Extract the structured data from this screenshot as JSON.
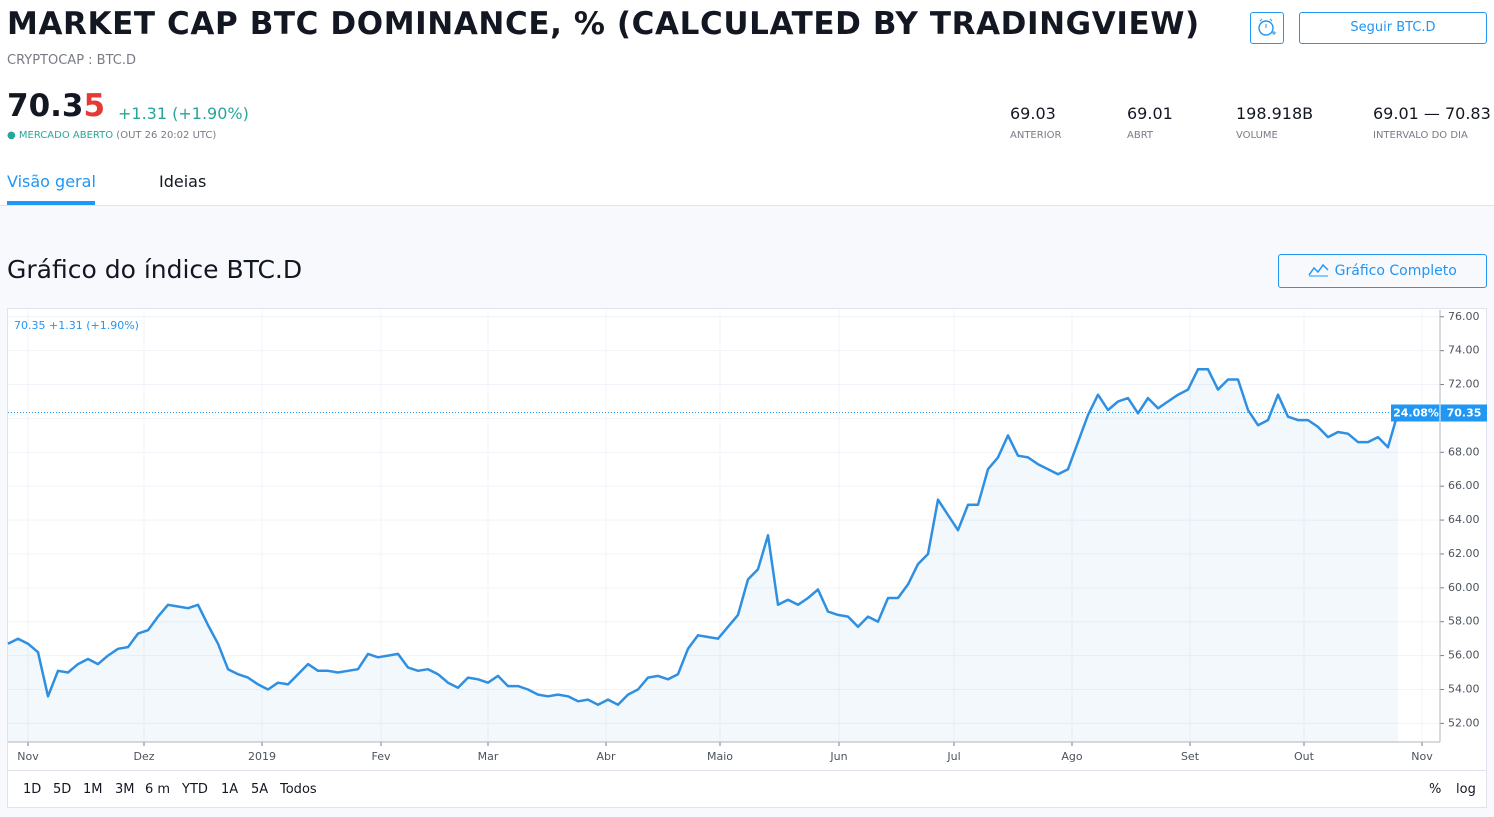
{
  "header": {
    "title": "MARKET CAP BTC DOMINANCE, % (CALCULATED BY TRADINGVIEW)",
    "symbol": "CRYPTOCAP : BTC.D",
    "price_main": "70.3",
    "price_last_digit": "5",
    "change": "+1.31 (+1.90%)",
    "market_status": "MERCADO ABERTO",
    "market_time": "(OUT 26 20:02 UTC)",
    "follow_button": "Seguir BTC.D",
    "stats": [
      {
        "value": "69.03",
        "label": "ANTERIOR"
      },
      {
        "value": "69.01",
        "label": "ABRT"
      },
      {
        "value": "198.918B",
        "label": "VOLUME"
      },
      {
        "value": "69.01 — 70.83",
        "label": "INTERVALO DO DIA"
      }
    ]
  },
  "tabs": [
    "Visão geral",
    "Ideias"
  ],
  "section": {
    "title": "Gráfico do índice BTC.D",
    "button": "Gráfico Completo"
  },
  "chart_data": {
    "type": "line",
    "legend_text": "70.35 +1.31 (+1.90%)",
    "color": "#2f8fe0",
    "values": [
      56.7,
      57.0,
      56.7,
      56.2,
      53.6,
      55.1,
      55.0,
      55.5,
      55.8,
      55.5,
      56.0,
      56.4,
      56.5,
      57.3,
      57.5,
      58.3,
      59.0,
      58.9,
      58.8,
      59.0,
      57.8,
      56.7,
      55.2,
      54.9,
      54.7,
      54.3,
      54.0,
      54.4,
      54.3,
      54.9,
      55.5,
      55.1,
      55.1,
      55.0,
      55.1,
      55.2,
      56.1,
      55.9,
      56.0,
      56.1,
      55.3,
      55.1,
      55.2,
      54.9,
      54.4,
      54.1,
      54.7,
      54.6,
      54.4,
      54.8,
      54.2,
      54.2,
      54.0,
      53.7,
      53.6,
      53.7,
      53.6,
      53.3,
      53.4,
      53.1,
      53.4,
      53.1,
      53.7,
      54.0,
      54.7,
      54.8,
      54.6,
      54.9,
      56.4,
      57.2,
      57.1,
      57.0,
      57.7,
      58.4,
      60.5,
      61.1,
      63.1,
      59.0,
      59.3,
      59.0,
      59.4,
      59.9,
      58.6,
      58.4,
      58.3,
      57.7,
      58.3,
      58.0,
      59.4,
      59.4,
      60.2,
      61.4,
      62.0,
      65.2,
      64.3,
      63.4,
      64.9,
      64.9,
      67.0,
      67.7,
      69.0,
      67.8,
      67.7,
      67.3,
      67.0,
      66.7,
      67.0,
      68.6,
      70.2,
      71.4,
      70.5,
      71.0,
      71.2,
      70.3,
      71.2,
      70.6,
      71.0,
      71.4,
      71.7,
      72.9,
      72.9,
      71.7,
      72.3,
      72.3,
      70.5,
      69.6,
      69.9,
      71.4,
      70.1,
      69.9,
      69.9,
      69.5,
      68.9,
      69.2,
      69.1,
      68.6,
      68.6,
      68.9,
      68.3,
      70.35
    ],
    "xlim": [
      0,
      143
    ],
    "xticks": [
      {
        "value": 2,
        "label": "Nov"
      },
      {
        "value": 13.6,
        "label": "Dez"
      },
      {
        "value": 25.4,
        "label": "2019"
      },
      {
        "value": 37.3,
        "label": "Fev"
      },
      {
        "value": 48,
        "label": "Mar"
      },
      {
        "value": 59.8,
        "label": "Abr"
      },
      {
        "value": 71.2,
        "label": "Maio"
      },
      {
        "value": 83.1,
        "label": "Jun"
      },
      {
        "value": 94.6,
        "label": "Jul"
      },
      {
        "value": 106.4,
        "label": "Ago"
      },
      {
        "value": 118.2,
        "label": "Set"
      },
      {
        "value": 129.6,
        "label": "Out"
      },
      {
        "value": 141.4,
        "label": "Nov"
      }
    ],
    "ylim": [
      50.9,
      76.4
    ],
    "yticks": [
      {
        "value": 52,
        "label": "52.00"
      },
      {
        "value": 54,
        "label": "54.00"
      },
      {
        "value": 56,
        "label": "56.00"
      },
      {
        "value": 58,
        "label": "58.00"
      },
      {
        "value": 60,
        "label": "60.00"
      },
      {
        "value": 62,
        "label": "62.00"
      },
      {
        "value": 64,
        "label": "64.00"
      },
      {
        "value": 66,
        "label": "66.00"
      },
      {
        "value": 68,
        "label": "68.00"
      },
      {
        "value": 70,
        "label": "70.00"
      },
      {
        "value": 72,
        "label": "72.00"
      },
      {
        "value": 74,
        "label": "74.00"
      },
      {
        "value": 76,
        "label": "76.00"
      }
    ],
    "grid": true,
    "price_line": 70.35,
    "price_scale_label": "24.08%",
    "ranges": [
      "1D",
      "5D",
      "1M",
      "3M",
      "6 m",
      "YTD",
      "1A",
      "5A",
      "Todos"
    ],
    "scale_options": [
      "%",
      "log"
    ]
  }
}
